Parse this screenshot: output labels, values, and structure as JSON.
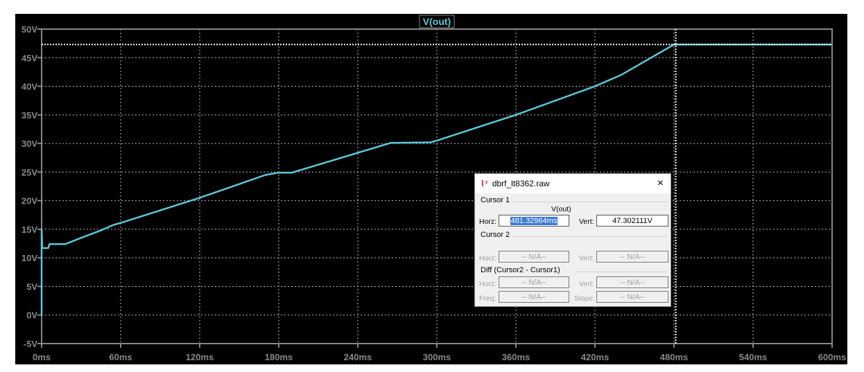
{
  "chart_data": {
    "type": "line",
    "title": "V(out)",
    "xlim": [
      0,
      600
    ],
    "ylim": [
      -5,
      50
    ],
    "x_ticks": [
      "0ms",
      "60ms",
      "120ms",
      "180ms",
      "240ms",
      "300ms",
      "360ms",
      "420ms",
      "480ms",
      "540ms",
      "600ms"
    ],
    "y_ticks": [
      "50V",
      "45V",
      "40V",
      "35V",
      "30V",
      "25V",
      "20V",
      "15V",
      "10V",
      "5V",
      "0V",
      "-5V"
    ],
    "grid": true,
    "series": [
      {
        "name": "V(out)",
        "color": "#5bc8d8",
        "points": [
          [
            0,
            0
          ],
          [
            0,
            15
          ],
          [
            0.5,
            11.7
          ],
          [
            5,
            11.7
          ],
          [
            6,
            12.4
          ],
          [
            18,
            12.4
          ],
          [
            30,
            13.5
          ],
          [
            45,
            14.8
          ],
          [
            55,
            15.8
          ],
          [
            60,
            16.1
          ],
          [
            120,
            20.5
          ],
          [
            170,
            24.5
          ],
          [
            180,
            24.9
          ],
          [
            190,
            24.9
          ],
          [
            265,
            30.1
          ],
          [
            295,
            30.2
          ],
          [
            300,
            30.5
          ],
          [
            360,
            35
          ],
          [
            420,
            40
          ],
          [
            440,
            42
          ],
          [
            480,
            47.3
          ],
          [
            600,
            47.3
          ]
        ]
      }
    ],
    "cursor": {
      "x_ms": 481.32964,
      "y_v": 47.302111
    }
  },
  "dialog": {
    "title": "dbrf_lt8362.raw",
    "close": "×",
    "cursor1": "Cursor 1",
    "trace": "V(out)",
    "horz_label": "Horz:",
    "horz_value": "481.32964ms",
    "vert_label": "Vert:",
    "vert_value": "47.302111V",
    "cursor2": "Cursor 2",
    "c2_horz": "-- N/A--",
    "c2_vert": "-- N/A--",
    "diff": "Diff (Cursor2 - Cursor1)",
    "freq_label": "Freq:",
    "slope_label": "Slope:",
    "d_horz": "-- N/A--",
    "d_vert": "-- N/A--",
    "d_freq": "-- N/A--",
    "d_slope": "-- N/A--"
  }
}
